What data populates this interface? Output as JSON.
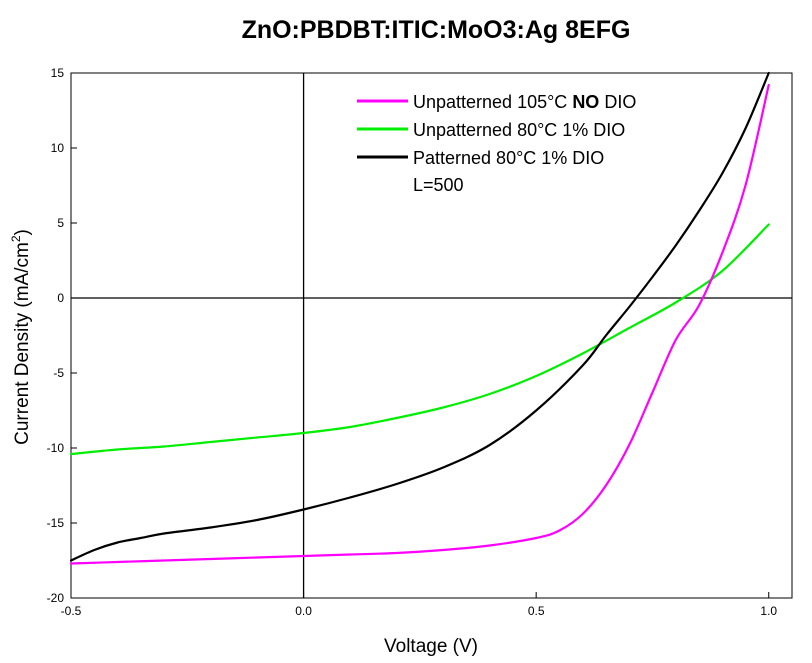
{
  "chart_data": {
    "type": "line",
    "title": "ZnO:PBDBT:ITIC:MoO3:Ag  8EFG",
    "xlabel": "Voltage (V)",
    "ylabel": "Current Density (mA/cm",
    "ylabel_sup": "2",
    "ylabel_close": ")",
    "xlim": [
      -0.5,
      1.05
    ],
    "ylim": [
      -20,
      15
    ],
    "xticks": [
      -0.5,
      0.0,
      0.5,
      1.0
    ],
    "xtick_labels": [
      "-0.5",
      "0.0",
      "0.5",
      "1.0"
    ],
    "yticks": [
      -20,
      -15,
      -10,
      -5,
      0,
      5,
      10,
      15
    ],
    "ytick_labels": [
      "-20",
      "-15",
      "-10",
      "-5",
      "0",
      "5",
      "10",
      "15"
    ],
    "zero_lines": true,
    "grid": false,
    "legend_position": "top-right",
    "legend_note": "L=500",
    "series": [
      {
        "name_parts": [
          "Unpatterned 105°C ",
          "NO",
          " DIO"
        ],
        "color": "#ff00ff",
        "x": [
          -0.5,
          -0.4,
          -0.3,
          -0.2,
          -0.1,
          0.0,
          0.1,
          0.2,
          0.3,
          0.4,
          0.5,
          0.55,
          0.6,
          0.65,
          0.7,
          0.75,
          0.8,
          0.85,
          0.9,
          0.95,
          1.0
        ],
        "y": [
          -17.7,
          -17.6,
          -17.5,
          -17.4,
          -17.3,
          -17.2,
          -17.1,
          -17.0,
          -16.8,
          -16.5,
          -16.0,
          -15.5,
          -14.4,
          -12.5,
          -9.8,
          -6.3,
          -2.8,
          -0.5,
          3.0,
          7.5,
          14.2
        ]
      },
      {
        "name": "Unpatterned 80°C 1% DIO",
        "color": "#00ee00",
        "x": [
          -0.5,
          -0.4,
          -0.3,
          -0.2,
          -0.1,
          0.0,
          0.1,
          0.2,
          0.3,
          0.4,
          0.5,
          0.6,
          0.7,
          0.8,
          0.9,
          1.0
        ],
        "y": [
          -10.4,
          -10.1,
          -9.9,
          -9.6,
          -9.3,
          -9.0,
          -8.6,
          -8.0,
          -7.3,
          -6.4,
          -5.2,
          -3.7,
          -2.0,
          -0.3,
          1.8,
          4.9
        ]
      },
      {
        "name": "Patterned 80°C 1% DIO",
        "color": "#000000",
        "x": [
          -0.5,
          -0.45,
          -0.4,
          -0.35,
          -0.3,
          -0.2,
          -0.1,
          0.0,
          0.1,
          0.2,
          0.3,
          0.4,
          0.5,
          0.6,
          0.65,
          0.7,
          0.75,
          0.8,
          0.85,
          0.9,
          0.95,
          1.0
        ],
        "y": [
          -17.5,
          -16.8,
          -16.3,
          -16.0,
          -15.7,
          -15.3,
          -14.8,
          -14.1,
          -13.3,
          -12.4,
          -11.3,
          -9.8,
          -7.5,
          -4.5,
          -2.5,
          -0.6,
          1.4,
          3.5,
          5.8,
          8.3,
          11.3,
          15.0
        ]
      }
    ]
  }
}
